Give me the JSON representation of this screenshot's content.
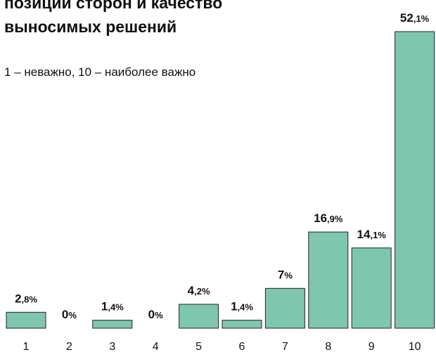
{
  "chart_data": {
    "type": "bar",
    "title": [
      "позиции сторон и качество",
      "выносимых решений"
    ],
    "subtitle": "1 – неважно, 10 – наиболее важно",
    "categories": [
      "1",
      "2",
      "3",
      "4",
      "5",
      "6",
      "7",
      "8",
      "9",
      "10"
    ],
    "values": [
      2.8,
      0,
      1.4,
      0,
      4.2,
      1.4,
      7,
      16.9,
      14.1,
      52.1
    ],
    "value_labels": [
      "2,8%",
      "0%",
      "1,4%",
      "0%",
      "4,2%",
      "1,4%",
      "7%",
      "16,9%",
      "14,1%",
      "52,1%"
    ],
    "color": "#7fc6ae"
  }
}
